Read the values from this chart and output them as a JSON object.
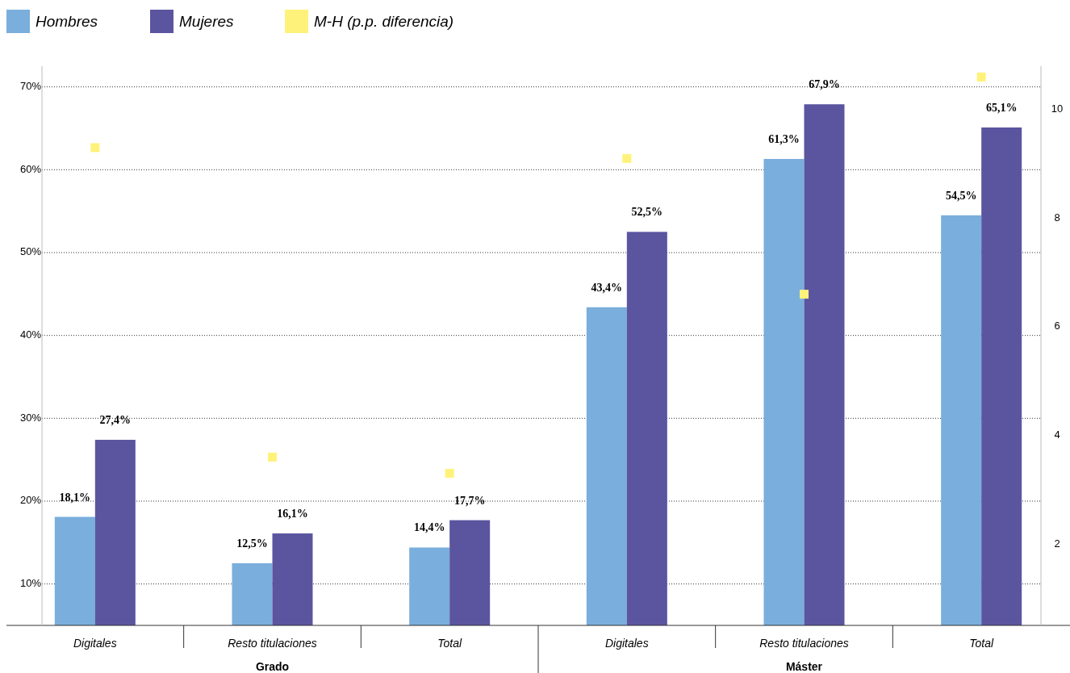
{
  "chart_data": {
    "type": "bar",
    "categories": [
      "Digitales",
      "Resto titulaciones",
      "Total",
      "Digitales",
      "Resto titulaciones",
      "Total"
    ],
    "series": [
      {
        "name": "Hombres",
        "color": "#7aaedc",
        "values": [
          18.1,
          12.5,
          14.4,
          43.4,
          61.3,
          54.5
        ],
        "value_labels": [
          "18,1%",
          "12,5%",
          "14,4%",
          "43,4%",
          "61,3%",
          "54,5%"
        ]
      },
      {
        "name": "Mujeres",
        "color": "#5b55a0",
        "values": [
          27.4,
          16.1,
          17.7,
          52.5,
          67.9,
          65.1
        ],
        "value_labels": [
          "27,4%",
          "16,1%",
          "17,7%",
          "52,5%",
          "67,9%",
          "65,1%"
        ]
      },
      {
        "name": "M-H (p.p. diferencia)",
        "type": "scatter",
        "axis": "y2",
        "marker": "square",
        "color": "#fff27a",
        "values": [
          9.3,
          3.6,
          3.3,
          9.1,
          6.6,
          10.6
        ]
      }
    ],
    "annotations": [
      "Grado",
      "Máster"
    ],
    "ylim": [
      5,
      72.5
    ],
    "yticks": [
      {
        "value": 10,
        "label": "10%"
      },
      {
        "value": 20,
        "label": "20%"
      },
      {
        "value": 30,
        "label": "30%"
      },
      {
        "value": 40,
        "label": "40%"
      },
      {
        "value": 50,
        "label": "50%"
      },
      {
        "value": 60,
        "label": "60%"
      },
      {
        "value": 70,
        "label": "70%"
      }
    ],
    "y2lim": [
      0.5,
      10.8
    ],
    "y2ticks": [
      2,
      4,
      6,
      8,
      10
    ],
    "grid": "y",
    "legend": "top left"
  }
}
